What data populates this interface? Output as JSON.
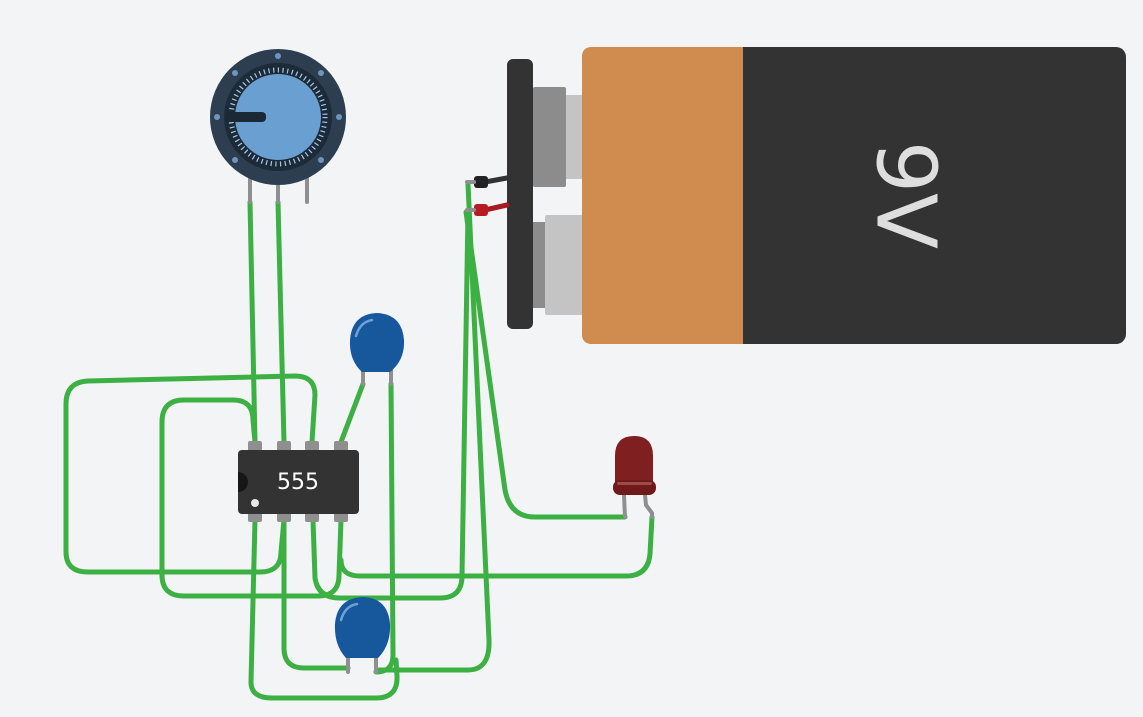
{
  "circuit": {
    "ic": {
      "label": "555"
    },
    "battery": {
      "label": "9V"
    },
    "components": [
      {
        "kind": "timer-ic",
        "label": "555"
      },
      {
        "kind": "battery",
        "label": "9V"
      },
      {
        "kind": "potentiometer",
        "icon": "dial-icon"
      },
      {
        "kind": "ceramic-capacitor"
      },
      {
        "kind": "ceramic-capacitor"
      },
      {
        "kind": "led"
      }
    ]
  },
  "colors": {
    "background": "#f2f4f6",
    "wire": "#3cb043",
    "ic_body": "#333333",
    "battery_body": "#333333",
    "battery_band": "#d08c4f",
    "capacitor": "#17579b",
    "led": "#7f1f1f",
    "potentiometer_knob": "#6a9fd2",
    "potentiometer_ring": "#2c3e50"
  }
}
